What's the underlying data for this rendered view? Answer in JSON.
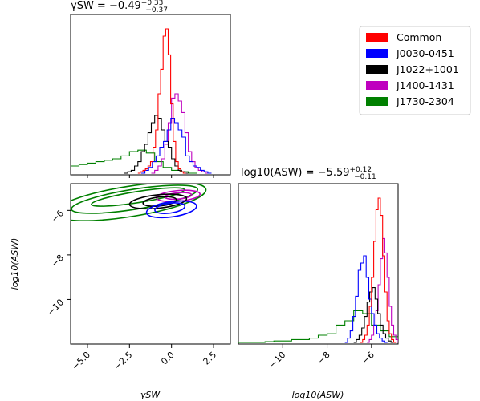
{
  "chart_data": {
    "type": "corner",
    "parameters": [
      {
        "key": "gamma",
        "label": "γSW",
        "title": "γSW = −0.49",
        "title_sup": "+0.33",
        "title_sub": "−0.37"
      },
      {
        "key": "log_amp",
        "label": "log10(ASW)",
        "title": "log10(ASW) = −5.59",
        "title_sup": "+0.12",
        "title_sub": "−0.11"
      }
    ],
    "gamma_axis": {
      "range": [
        -6,
        3.5
      ],
      "ticks": [
        -5.0,
        -2.5,
        0.0,
        2.5
      ],
      "tick_labels": [
        "−5.0",
        "−2.5",
        "0.0",
        "2.5"
      ]
    },
    "log_amp_axis": {
      "range": [
        -12,
        -4.8
      ],
      "ticks": [
        -10,
        -8,
        -6
      ],
      "tick_labels": [
        "−10",
        "−8",
        "−6"
      ]
    },
    "legend": {
      "position": "top-right",
      "entries": [
        {
          "name": "Common",
          "color": "#ff0000"
        },
        {
          "name": "J0030-0451",
          "color": "#0000ff"
        },
        {
          "name": "J1022+1001",
          "color": "#000000"
        },
        {
          "name": "J1400-1431",
          "color": "#bf00bf"
        },
        {
          "name": "J1730-2304",
          "color": "#008000"
        }
      ]
    },
    "series": [
      {
        "name": "Common",
        "color": "#ff0000",
        "gamma_hist": {
          "x0": -2.0,
          "dx": 0.15,
          "values": [
            0,
            0.01,
            0.02,
            0.03,
            0.05,
            0.08,
            0.18,
            0.3,
            0.55,
            0.72,
            0.95,
            1.0,
            0.82,
            0.48,
            0.22,
            0.08,
            0.03,
            0.01,
            0
          ]
        },
        "log_amp_hist": {
          "x0": -6.5,
          "dx": 0.1,
          "values": [
            0,
            0.02,
            0.05,
            0.12,
            0.25,
            0.45,
            0.7,
            0.92,
            1.0,
            0.88,
            0.6,
            0.35,
            0.15,
            0.06,
            0.02,
            0
          ]
        },
        "contours": []
      },
      {
        "name": "J0030-0451",
        "color": "#0000ff",
        "gamma_hist": {
          "x0": -1.8,
          "dx": 0.22,
          "values": [
            0,
            0.02,
            0.04,
            0.08,
            0.12,
            0.18,
            0.22,
            0.3,
            0.38,
            0.35,
            0.3,
            0.25,
            0.12,
            0.08,
            0.05,
            0.04,
            0.02,
            0.01,
            0
          ]
        },
        "log_amp_hist": {
          "x0": -7.2,
          "dx": 0.12,
          "values": [
            0,
            0.03,
            0.08,
            0.18,
            0.32,
            0.5,
            0.55,
            0.6,
            0.45,
            0.3,
            0.2,
            0.12,
            0.06,
            0.03,
            0.01,
            0
          ]
        },
        "contours": [
          {
            "cx": -0.1,
            "cy": -5.9,
            "rx": 0.9,
            "ry": 0.22,
            "angle": -8
          },
          {
            "cx": 0.0,
            "cy": -5.95,
            "rx": 1.5,
            "ry": 0.34,
            "angle": -8
          }
        ]
      },
      {
        "name": "J1022+1001",
        "color": "#000000",
        "gamma_hist": {
          "x0": -2.8,
          "dx": 0.2,
          "values": [
            0,
            0.01,
            0.02,
            0.05,
            0.08,
            0.15,
            0.2,
            0.28,
            0.35,
            0.4,
            0.38,
            0.3,
            0.22,
            0.18,
            0.1,
            0.05,
            0.02,
            0.01,
            0
          ]
        },
        "log_amp_hist": {
          "x0": -6.8,
          "dx": 0.12,
          "values": [
            0,
            0.02,
            0.05,
            0.1,
            0.18,
            0.28,
            0.35,
            0.38,
            0.3,
            0.2,
            0.12,
            0.06,
            0.03,
            0.01,
            0
          ]
        },
        "contours": [
          {
            "cx": -0.7,
            "cy": -5.6,
            "rx": 1.0,
            "ry": 0.2,
            "angle": -6
          },
          {
            "cx": -0.8,
            "cy": -5.6,
            "rx": 1.7,
            "ry": 0.3,
            "angle": -6
          }
        ]
      },
      {
        "name": "J1400-1431",
        "color": "#bf00bf",
        "gamma_hist": {
          "x0": -1.2,
          "dx": 0.2,
          "values": [
            0,
            0.02,
            0.05,
            0.1,
            0.2,
            0.35,
            0.52,
            0.55,
            0.5,
            0.42,
            0.28,
            0.15,
            0.08,
            0.04,
            0.02,
            0.01,
            0
          ]
        },
        "log_amp_hist": {
          "x0": -6.2,
          "dx": 0.1,
          "values": [
            0,
            0.02,
            0.05,
            0.12,
            0.22,
            0.4,
            0.58,
            0.72,
            0.62,
            0.45,
            0.25,
            0.12,
            0.05,
            0.02,
            0
          ]
        },
        "contours": [
          {
            "cx": 0.4,
            "cy": -5.35,
            "rx": 0.8,
            "ry": 0.14,
            "angle": -5
          },
          {
            "cx": 0.4,
            "cy": -5.35,
            "rx": 1.3,
            "ry": 0.24,
            "angle": -5
          }
        ]
      },
      {
        "name": "J1730-2304",
        "color": "#008000",
        "gamma_hist": {
          "x0": -6.0,
          "dx": 0.5,
          "values": [
            0.05,
            0.06,
            0.07,
            0.08,
            0.09,
            0.1,
            0.12,
            0.15,
            0.16,
            0.14,
            0.08,
            0.04,
            0.02,
            0.01,
            0
          ]
        },
        "log_amp_hist": {
          "x0": -12.0,
          "dx": 0.4,
          "values": [
            0,
            0,
            0,
            0.005,
            0.01,
            0.01,
            0.02,
            0.02,
            0.03,
            0.05,
            0.06,
            0.12,
            0.15,
            0.22,
            0.2,
            0.12,
            0.08,
            0.04,
            0
          ]
        },
        "contours": [
          {
            "cx": -2.0,
            "cy": -5.4,
            "rx": 2.8,
            "ry": 0.25,
            "angle": -9
          },
          {
            "cx": -2.2,
            "cy": -5.5,
            "rx": 3.8,
            "ry": 0.45,
            "angle": -9
          },
          {
            "cx": -2.5,
            "cy": -5.6,
            "rx": 4.6,
            "ry": 0.68,
            "angle": -9
          }
        ]
      }
    ]
  }
}
